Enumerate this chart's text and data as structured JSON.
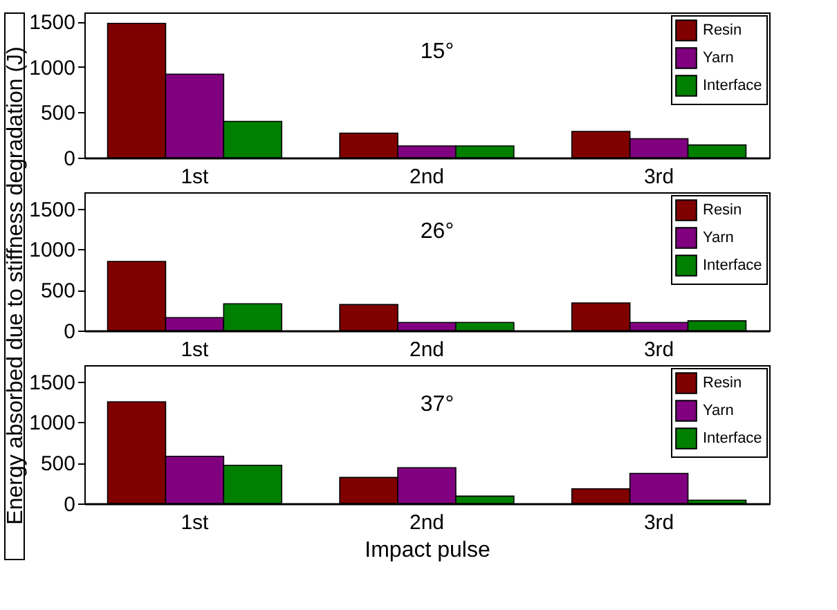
{
  "chart_data": [
    {
      "type": "bar",
      "categories": [
        "1st",
        "2nd",
        "3rd"
      ],
      "ylim": [
        0,
        1600
      ],
      "yticks": [
        0,
        500,
        1000,
        1500
      ],
      "grid": false,
      "legend": "top right",
      "annotations": [
        "15°"
      ],
      "series": [
        {
          "name": "Resin",
          "color": "#800000",
          "values": [
            1480,
            270,
            290
          ]
        },
        {
          "name": "Yarn",
          "color": "#800080",
          "values": [
            920,
            130,
            210
          ]
        },
        {
          "name": "Interface",
          "color": "#008000",
          "values": [
            400,
            130,
            140
          ]
        }
      ]
    },
    {
      "type": "bar",
      "categories": [
        "1st",
        "2nd",
        "3rd"
      ],
      "ylabel": "Energy absorbed due to stiffness degradation (J)",
      "ylim": [
        0,
        1700
      ],
      "yticks": [
        0,
        500,
        1000,
        1500
      ],
      "grid": false,
      "legend": "top right",
      "annotations": [
        "26°"
      ],
      "series": [
        {
          "name": "Resin",
          "color": "#800000",
          "values": [
            850,
            320,
            340
          ]
        },
        {
          "name": "Yarn",
          "color": "#800080",
          "values": [
            160,
            100,
            100
          ]
        },
        {
          "name": "Interface",
          "color": "#008000",
          "values": [
            330,
            100,
            120
          ]
        }
      ]
    },
    {
      "type": "bar",
      "categories": [
        "1st",
        "2nd",
        "3rd"
      ],
      "xlabel": "Impact pulse",
      "ylim": [
        0,
        1700
      ],
      "yticks": [
        0,
        500,
        1000,
        1500
      ],
      "grid": false,
      "legend": "top right",
      "annotations": [
        "37°"
      ],
      "series": [
        {
          "name": "Resin",
          "color": "#800000",
          "values": [
            1250,
            320,
            180
          ]
        },
        {
          "name": "Yarn",
          "color": "#800080",
          "values": [
            580,
            440,
            370
          ]
        },
        {
          "name": "Interface",
          "color": "#008000",
          "values": [
            470,
            90,
            40
          ]
        }
      ]
    }
  ]
}
